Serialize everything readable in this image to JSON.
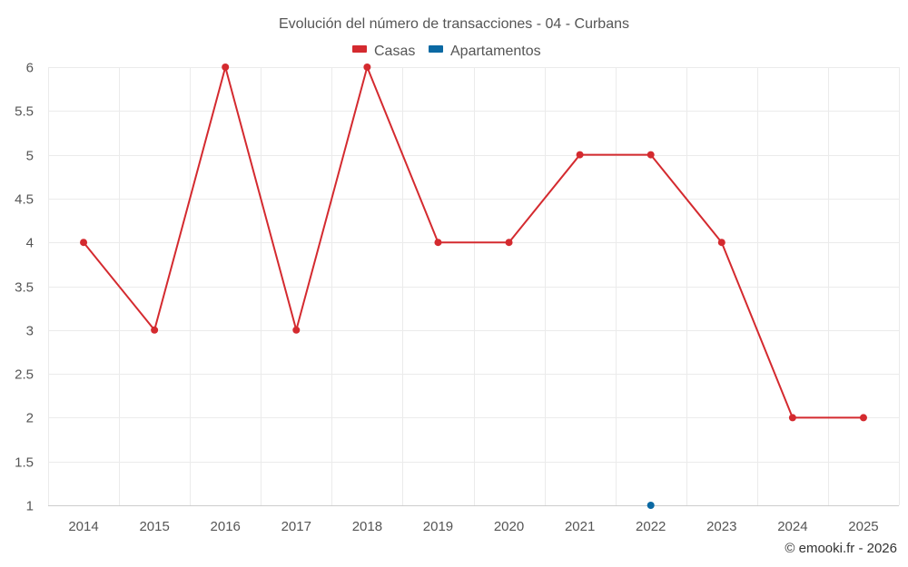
{
  "chart_data": {
    "type": "line",
    "title": "Evolución del número de transacciones - 04 - Curbans",
    "categories": [
      "2014",
      "2015",
      "2016",
      "2017",
      "2018",
      "2019",
      "2020",
      "2021",
      "2022",
      "2023",
      "2024",
      "2025"
    ],
    "series": [
      {
        "name": "Casas",
        "color": "#d42a2f",
        "values": [
          4,
          3,
          6,
          3,
          6,
          4,
          4,
          5,
          5,
          4,
          2,
          2
        ]
      },
      {
        "name": "Apartamentos",
        "color": "#0b69a3",
        "values": [
          null,
          null,
          null,
          null,
          null,
          null,
          null,
          null,
          1,
          null,
          null,
          null
        ]
      }
    ],
    "ylim": [
      1,
      6
    ],
    "yticks": [
      "1",
      "1.5",
      "2",
      "2.5",
      "3",
      "3.5",
      "4",
      "4.5",
      "5",
      "5.5",
      "6"
    ],
    "xlabel": "",
    "ylabel": "",
    "grid": true,
    "legend": "top-center"
  },
  "credit": "© emooki.fr - 2026"
}
